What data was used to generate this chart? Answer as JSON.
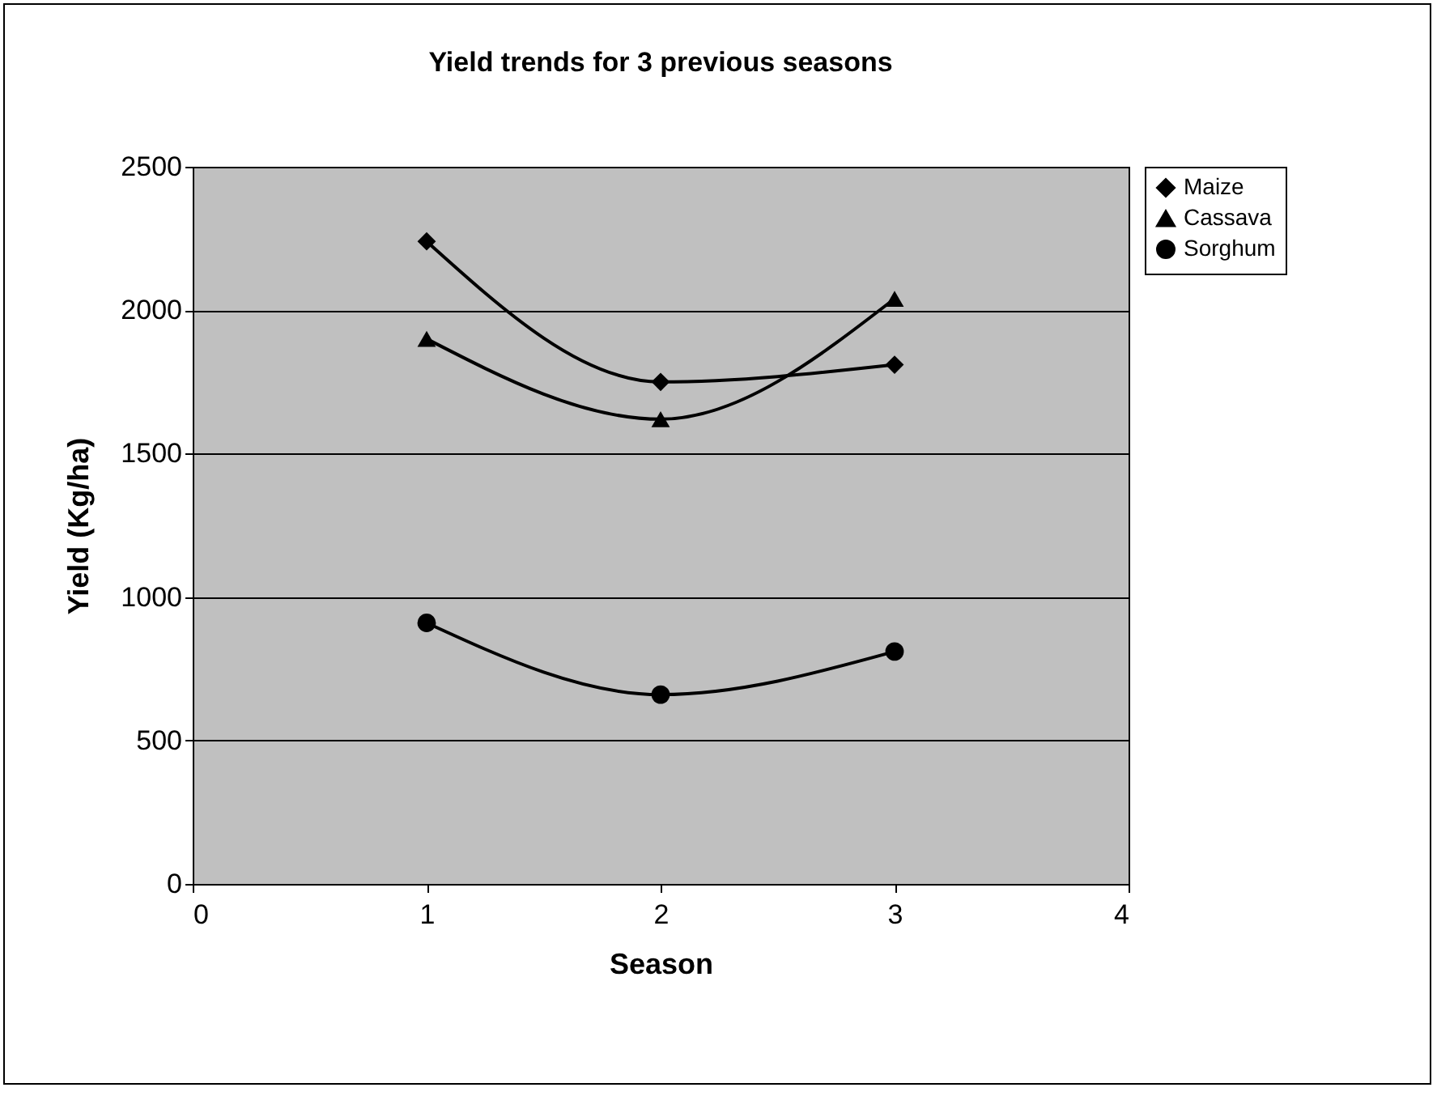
{
  "chart_data": {
    "type": "line",
    "title": "Yield trends for 3 previous seasons",
    "xlabel": "Season",
    "ylabel": "Yield (Kg/ha)",
    "x": [
      1,
      2,
      3
    ],
    "series": [
      {
        "name": "Maize",
        "color": "#000000",
        "marker": "diamond",
        "values": [
          2240,
          1750,
          1810
        ]
      },
      {
        "name": "Cassava",
        "color": "#000000",
        "marker": "triangle",
        "values": [
          1900,
          1620,
          2040
        ]
      },
      {
        "name": "Sorghum",
        "color": "#000000",
        "marker": "circle",
        "values": [
          910,
          660,
          810
        ]
      }
    ],
    "xlim": [
      0,
      4
    ],
    "xticks": [
      0,
      1,
      2,
      3,
      4
    ],
    "ylim": [
      0,
      2500
    ],
    "yticks": [
      0,
      500,
      1000,
      1500,
      2000,
      2500
    ],
    "grid": "y",
    "legend": "right",
    "line_style": "solid"
  }
}
